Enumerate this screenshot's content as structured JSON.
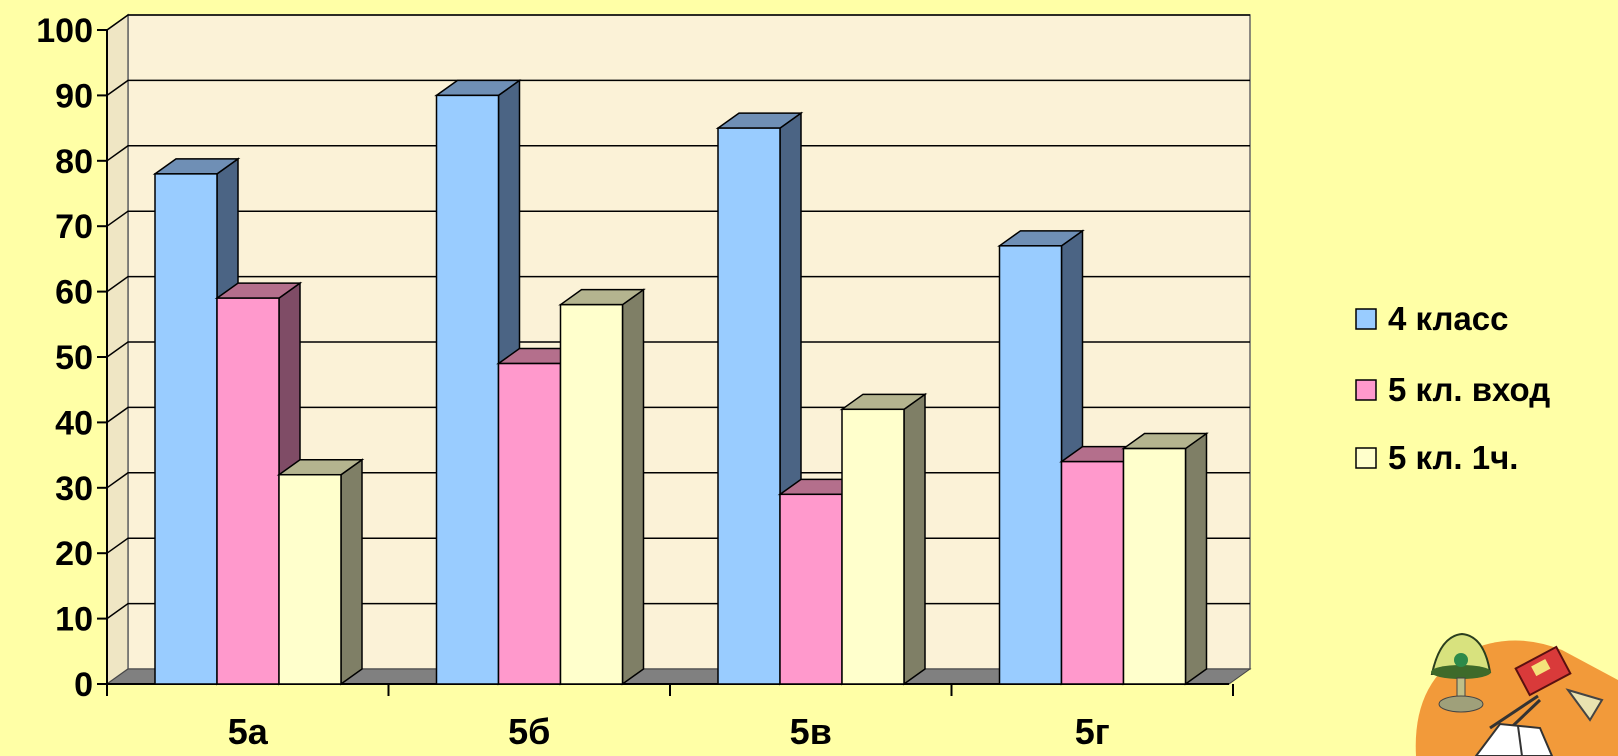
{
  "colors": {
    "page_background": "#FFFFA6",
    "plot_background": "#FBF2D7",
    "gridline": "#000000",
    "floor": "#808080"
  },
  "chart_data": {
    "type": "bar",
    "style": "3d-clustered-column",
    "categories": [
      "5а",
      "5б",
      "5в",
      "5г"
    ],
    "series": [
      {
        "name": "4 класс",
        "values": [
          78,
          90,
          85,
          67
        ],
        "color": "#99CCFF",
        "side_color": "#4B6484",
        "top_color": "#6F8FB5"
      },
      {
        "name": "5 кл. вход",
        "values": [
          59,
          49,
          29,
          34
        ],
        "color": "#FF99CC",
        "side_color": "#7F4C66",
        "top_color": "#B46F8C"
      },
      {
        "name": "5 кл. 1ч.",
        "values": [
          32,
          58,
          42,
          36
        ],
        "color": "#FFFFCC",
        "side_color": "#7F7F66",
        "top_color": "#B4B48F"
      }
    ],
    "ylim": [
      0,
      100
    ],
    "yticks": [
      0,
      10,
      20,
      30,
      40,
      50,
      60,
      70,
      80,
      90,
      100
    ],
    "grid": true,
    "legend": "right",
    "title": "",
    "xlabel": "",
    "ylabel": ""
  },
  "decoration": {
    "icon": "desk-lamp-books-clipart-icon"
  }
}
